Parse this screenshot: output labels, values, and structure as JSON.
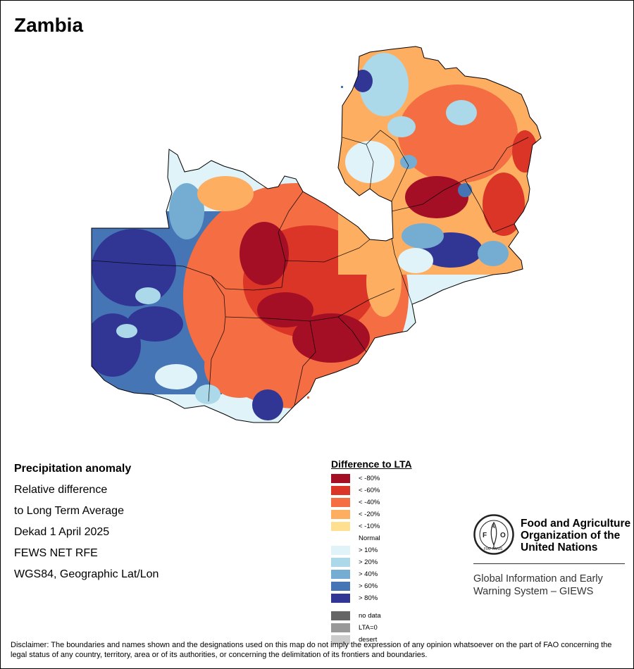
{
  "header": {
    "title": "Zambia"
  },
  "map_info": {
    "lines": [
      "Precipitation anomaly",
      "Relative difference",
      "to Long Term Average",
      "Dekad 1 April 2025",
      "FEWS NET RFE",
      "WGS84, Geographic Lat/Lon"
    ]
  },
  "legend": {
    "title": "Difference to LTA",
    "items": [
      {
        "label": "< -80%",
        "color": "#A50F26"
      },
      {
        "label": "< -60%",
        "color": "#DA3527"
      },
      {
        "label": "< -40%",
        "color": "#F46D43"
      },
      {
        "label": "< -20%",
        "color": "#FDAE61"
      },
      {
        "label": "< -10%",
        "color": "#FEE090"
      },
      {
        "label": "Normal",
        "color": "#FFFFFF"
      },
      {
        "label": "> 10%",
        "color": "#E0F3F8"
      },
      {
        "label": "> 20%",
        "color": "#ABD9E9"
      },
      {
        "label": "> 40%",
        "color": "#74ADD1"
      },
      {
        "label": "> 60%",
        "color": "#4575B4"
      },
      {
        "label": "> 80%",
        "color": "#313695"
      }
    ],
    "special": [
      {
        "label": "no data",
        "color": "#666666"
      },
      {
        "label": "LTA=0",
        "color": "#999999"
      },
      {
        "label": "desert",
        "color": "#CCCCCC"
      }
    ]
  },
  "fao": {
    "logo_text": "FAO",
    "motto": "FIAT PANIS",
    "name_lines": [
      "Food and Agriculture",
      "Organization of the",
      "United Nations"
    ],
    "system_lines": [
      "Global Information and Early",
      "Warning System – GIEWS"
    ]
  },
  "disclaimer": "Disclaimer: The boundaries and names shown and the designations used on this map do not imply the expression of any opinion whatsoever on the part of FAO concerning the legal status of any country, territory, area or of its authorities, or concerning the delimitation of its frontiers and boundaries."
}
